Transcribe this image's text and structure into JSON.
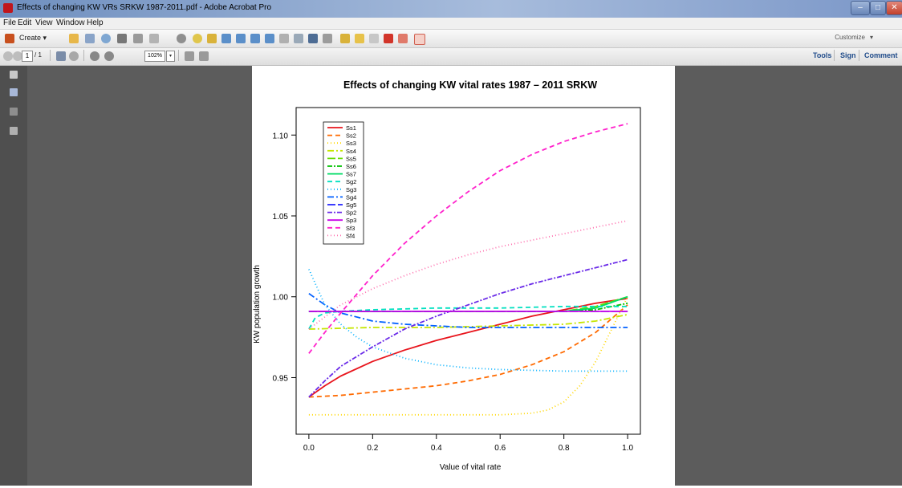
{
  "window": {
    "title": "Effects of changing KW VRs SRKW 1987-2011.pdf - Adobe Acrobat Pro",
    "minimize": "–",
    "maximize": "□",
    "close": "✕"
  },
  "menu": [
    "File",
    "Edit",
    "View",
    "Window",
    "Help"
  ],
  "toolbar": {
    "create_label": "Create",
    "create_arrow": "▾",
    "customize_label": "Customize",
    "customize_arrow": "▾"
  },
  "nav": {
    "page_current": "1",
    "page_total": "/ 1",
    "zoom": "102%",
    "zoom_arrow": "▾"
  },
  "tabs": {
    "tools": "Tools",
    "sign": "Sign",
    "comment": "Comment"
  },
  "icons": {
    "app": "acrobat-icon",
    "toolbar": [
      "open-icon",
      "save-icon",
      "cloud-icon",
      "print-icon",
      "edit-icon",
      "email-icon",
      "gear-icon",
      "comment-icon",
      "stamp-icon",
      "export-icon",
      "combine-icon",
      "scan-icon",
      "protect-icon",
      "text-icon",
      "form-icon",
      "redact-icon",
      "highlight-icon",
      "attach-icon",
      "sign-icon",
      "pencil-icon",
      "eraser-icon",
      "shape-icon"
    ],
    "nav": [
      "prev-page-icon",
      "next-page-icon",
      "select-icon",
      "hand-icon",
      "zoom-out-icon",
      "zoom-in-icon",
      "fit-width-icon",
      "fit-page-icon"
    ],
    "sidebar": [
      "pages-icon",
      "bookmarks-icon",
      "attachments-icon",
      "signatures-icon"
    ]
  },
  "chart_data": {
    "type": "line",
    "title": "Effects of changing KW vital rates  1987 – 2011 SRKW",
    "xlabel": "Value of vital rate",
    "ylabel": "KW population growth",
    "xlim": [
      -0.04,
      1.04
    ],
    "ylim": [
      0.915,
      1.117
    ],
    "xticks": [
      0.0,
      0.2,
      0.4,
      0.6,
      0.8,
      1.0
    ],
    "yticks": [
      0.95,
      1.0,
      1.05,
      1.1
    ],
    "xtick_labels": [
      "0.0",
      "0.2",
      "0.4",
      "0.6",
      "0.8",
      "1.0"
    ],
    "ytick_labels": [
      "0.95",
      "1.00",
      "1.05",
      "1.10"
    ],
    "legend_position": "top-left",
    "series": [
      {
        "name": "Ss1",
        "color": "#e8141c",
        "dash": "",
        "x": [
          0,
          0.05,
          0.1,
          0.2,
          0.3,
          0.4,
          0.5,
          0.6,
          0.7,
          0.8,
          0.9,
          1.0
        ],
        "y": [
          0.938,
          0.945,
          0.951,
          0.96,
          0.967,
          0.973,
          0.978,
          0.983,
          0.988,
          0.992,
          0.996,
          0.999
        ]
      },
      {
        "name": "Ss2",
        "color": "#ff6a00",
        "dash": "6,4",
        "x": [
          0,
          0.1,
          0.2,
          0.3,
          0.4,
          0.5,
          0.6,
          0.7,
          0.8,
          0.9,
          1.0
        ],
        "y": [
          0.938,
          0.939,
          0.941,
          0.943,
          0.945,
          0.948,
          0.952,
          0.958,
          0.966,
          0.978,
          0.995
        ]
      },
      {
        "name": "Ss3",
        "color": "#ffd700",
        "dash": "1,3",
        "x": [
          0,
          0.2,
          0.4,
          0.6,
          0.7,
          0.75,
          0.8,
          0.85,
          0.9,
          0.95,
          1.0
        ],
        "y": [
          0.927,
          0.927,
          0.927,
          0.927,
          0.928,
          0.93,
          0.935,
          0.945,
          0.96,
          0.98,
          1.0
        ]
      },
      {
        "name": "Ss4",
        "color": "#c6e600",
        "dash": "8,3,2,3",
        "x": [
          0,
          0.2,
          0.4,
          0.6,
          0.8,
          0.9,
          1.0
        ],
        "y": [
          0.98,
          0.981,
          0.981,
          0.982,
          0.983,
          0.985,
          0.989
        ]
      },
      {
        "name": "Ss5",
        "color": "#66dd00",
        "dash": "10,3",
        "x": [
          0,
          0.2,
          0.4,
          0.6,
          0.8,
          0.9,
          1.0
        ],
        "y": [
          0.991,
          0.991,
          0.991,
          0.991,
          0.991,
          0.994,
          1.0
        ]
      },
      {
        "name": "Ss6",
        "color": "#00c000",
        "dash": "6,2,2,2",
        "x": [
          0,
          0.2,
          0.4,
          0.6,
          0.8,
          0.9,
          1.0
        ],
        "y": [
          0.991,
          0.991,
          0.991,
          0.991,
          0.991,
          0.992,
          0.996
        ]
      },
      {
        "name": "Ss7",
        "color": "#00dd66",
        "dash": "",
        "x": [
          0,
          0.2,
          0.4,
          0.6,
          0.8,
          0.9,
          1.0
        ],
        "y": [
          0.991,
          0.991,
          0.991,
          0.991,
          0.991,
          0.993,
          1.0
        ]
      },
      {
        "name": "Sg2",
        "color": "#00e0c0",
        "dash": "6,4",
        "x": [
          0,
          0.02,
          0.05,
          0.1,
          0.2,
          0.4,
          0.6,
          0.8,
          1.0
        ],
        "y": [
          0.98,
          0.987,
          0.99,
          0.991,
          0.992,
          0.993,
          0.993,
          0.994,
          0.994
        ]
      },
      {
        "name": "Sg3",
        "color": "#00b0ff",
        "dash": "1,3",
        "x": [
          0,
          0.05,
          0.1,
          0.15,
          0.2,
          0.3,
          0.4,
          0.5,
          0.6,
          0.8,
          1.0
        ],
        "y": [
          1.017,
          0.995,
          0.983,
          0.975,
          0.969,
          0.962,
          0.958,
          0.956,
          0.955,
          0.954,
          0.954
        ]
      },
      {
        "name": "Sg4",
        "color": "#0060ff",
        "dash": "8,3,2,3",
        "x": [
          0,
          0.05,
          0.1,
          0.2,
          0.3,
          0.4,
          0.5,
          0.7,
          1.0
        ],
        "y": [
          1.002,
          0.995,
          0.99,
          0.985,
          0.983,
          0.982,
          0.981,
          0.981,
          0.981
        ]
      },
      {
        "name": "Sg5",
        "color": "#2020ff",
        "dash": "10,3",
        "x": [
          0,
          0.2,
          0.4,
          0.6,
          0.8,
          1.0
        ],
        "y": [
          0.991,
          0.991,
          0.991,
          0.991,
          0.991,
          0.991
        ]
      },
      {
        "name": "Sp2",
        "color": "#6a2ae8",
        "dash": "6,2,2,2",
        "x": [
          0,
          0.05,
          0.1,
          0.2,
          0.3,
          0.4,
          0.5,
          0.6,
          0.7,
          0.8,
          0.9,
          1.0
        ],
        "y": [
          0.938,
          0.948,
          0.957,
          0.969,
          0.98,
          0.988,
          0.995,
          1.002,
          1.008,
          1.013,
          1.018,
          1.023
        ]
      },
      {
        "name": "Sp3",
        "color": "#c800e8",
        "dash": "",
        "x": [
          0,
          0.2,
          0.4,
          0.6,
          0.8,
          1.0
        ],
        "y": [
          0.991,
          0.991,
          0.991,
          0.991,
          0.991,
          0.991
        ]
      },
      {
        "name": "Sf3",
        "color": "#ff22cc",
        "dash": "6,4",
        "x": [
          0,
          0.05,
          0.1,
          0.2,
          0.3,
          0.4,
          0.5,
          0.6,
          0.7,
          0.8,
          0.9,
          1.0
        ],
        "y": [
          0.965,
          0.978,
          0.99,
          1.013,
          1.033,
          1.05,
          1.065,
          1.078,
          1.088,
          1.096,
          1.102,
          1.107
        ]
      },
      {
        "name": "Sf4",
        "color": "#ff6fae",
        "dash": "1,3",
        "x": [
          0,
          0.1,
          0.2,
          0.3,
          0.4,
          0.5,
          0.6,
          0.7,
          0.8,
          0.9,
          1.0
        ],
        "y": [
          0.98,
          0.995,
          1.005,
          1.013,
          1.02,
          1.026,
          1.031,
          1.035,
          1.039,
          1.043,
          1.047
        ]
      }
    ]
  }
}
